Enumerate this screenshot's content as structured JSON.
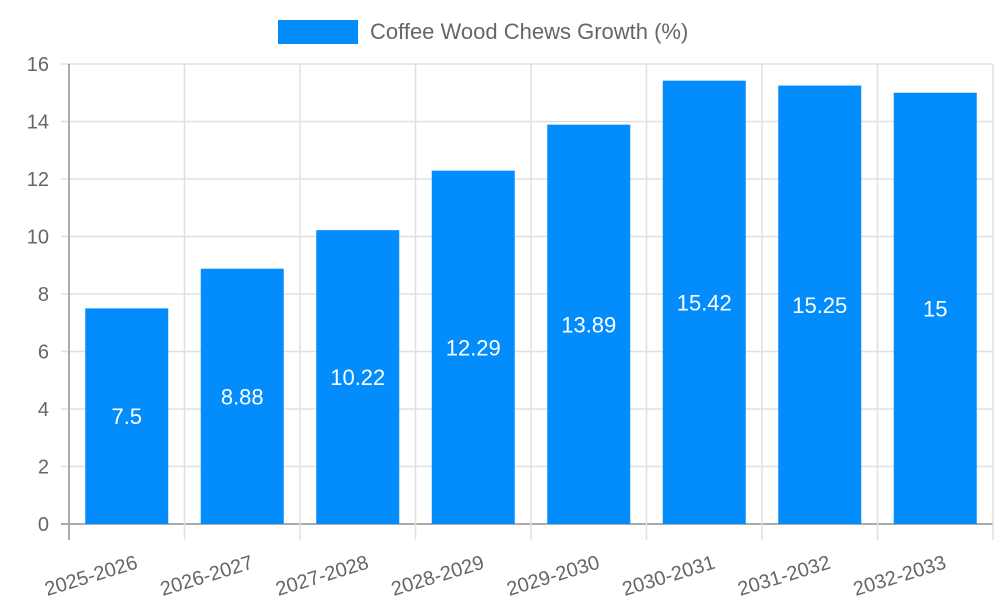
{
  "chart_data": {
    "type": "bar",
    "title": "",
    "xlabel": "",
    "ylabel": "",
    "categories": [
      "2025-2026",
      "2026-2027",
      "2027-2028",
      "2028-2029",
      "2029-2030",
      "2030-2031",
      "2031-2032",
      "2032-2033"
    ],
    "series": [
      {
        "name": "Coffee Wood Chews Growth (%)",
        "values": [
          7.5,
          8.88,
          10.22,
          12.29,
          13.89,
          15.42,
          15.25,
          15
        ],
        "color": "#038cfc"
      }
    ],
    "ylim": [
      0,
      16
    ],
    "yticks": [
      0,
      2,
      4,
      6,
      8,
      10,
      12,
      14,
      16
    ],
    "grid": true,
    "legend_position": "top",
    "data_labels": true
  },
  "legend": {
    "label": "Coffee Wood Chews Growth (%)",
    "color": "#038cfc"
  }
}
